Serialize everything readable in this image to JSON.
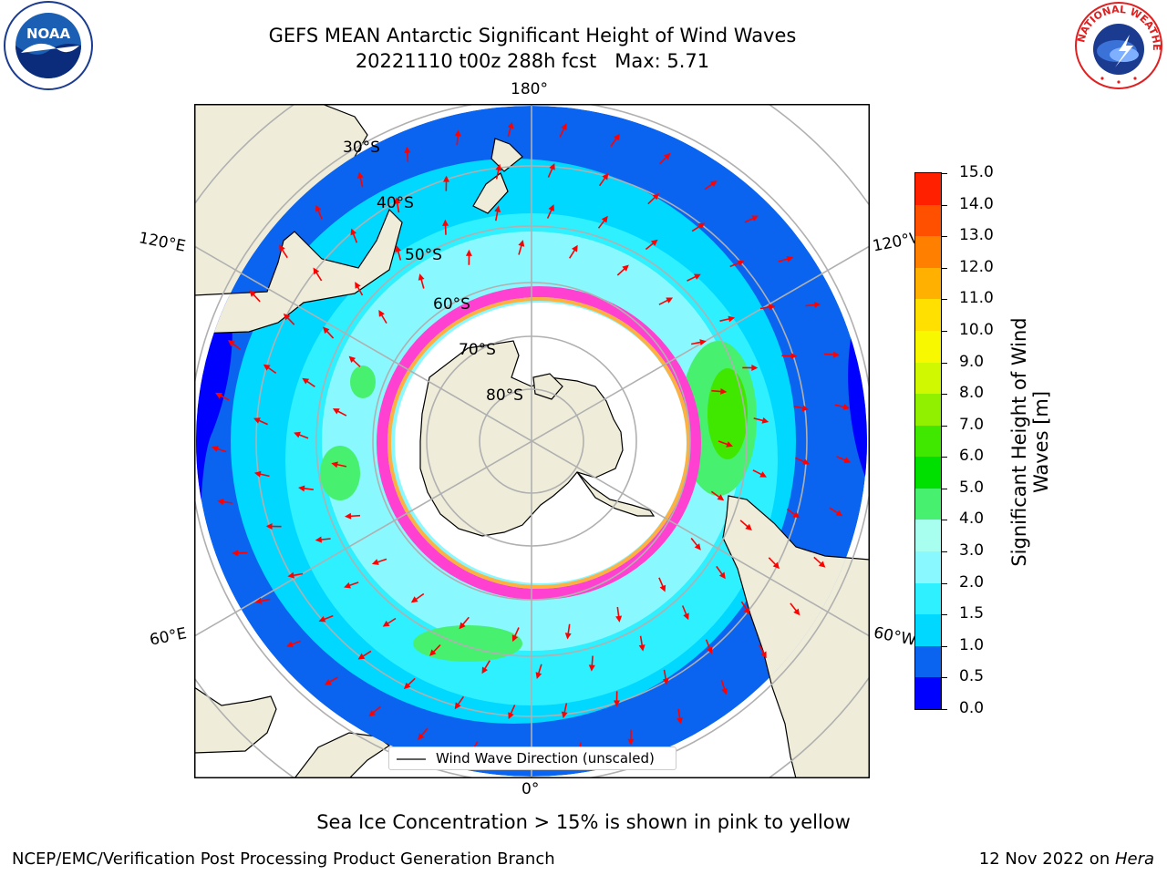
{
  "title_line1": "GEFS MEAN Antarctic Significant Height of Wind Waves",
  "title_line2": "20221110 t00z 288h fcst   Max: 5.71",
  "longitude_labels": {
    "top": "180°",
    "bottom": "0°",
    "upper_left": "120°E",
    "upper_right": "120°W",
    "lower_left": "60°E",
    "lower_right": "60°W"
  },
  "latitude_labels": [
    "30°S",
    "40°S",
    "50°S",
    "60°S",
    "70°S",
    "80°S"
  ],
  "legend": {
    "label": "Wind Wave Direction (unscaled)"
  },
  "colorbar": {
    "title_line1": "Significant Height of Wind",
    "title_line2": "Waves [m]",
    "ticks": [
      "0.0",
      "0.5",
      "1.0",
      "1.5",
      "2.0",
      "3.0",
      "4.0",
      "5.0",
      "6.0",
      "7.0",
      "8.0",
      "9.0",
      "10.0",
      "11.0",
      "12.0",
      "13.0",
      "14.0",
      "15.0"
    ],
    "colors": [
      "#0000ff",
      "#0a64f0",
      "#00d8ff",
      "#2ef0ff",
      "#8af8ff",
      "#a8fff0",
      "#48f070",
      "#00e000",
      "#40e800",
      "#90f000",
      "#d0f800",
      "#f8f800",
      "#ffe000",
      "#ffb000",
      "#ff8000",
      "#ff5000",
      "#ff2000"
    ]
  },
  "caption": "Sea Ice Concentration > 15% is shown in pink to yellow",
  "footer": {
    "left": "NCEP/EMC/Verification Post Processing Product Generation Branch",
    "right_prefix": "12 Nov 2022 on ",
    "right_italic": "Hera"
  },
  "logos": {
    "left": "NOAA",
    "right": "NATIONAL WEATHER SERVICE"
  },
  "palette": {
    "land": "#efedda",
    "ice": "#ffffff",
    "arrow": "#ff0000",
    "grid": "#b0b0b0"
  }
}
